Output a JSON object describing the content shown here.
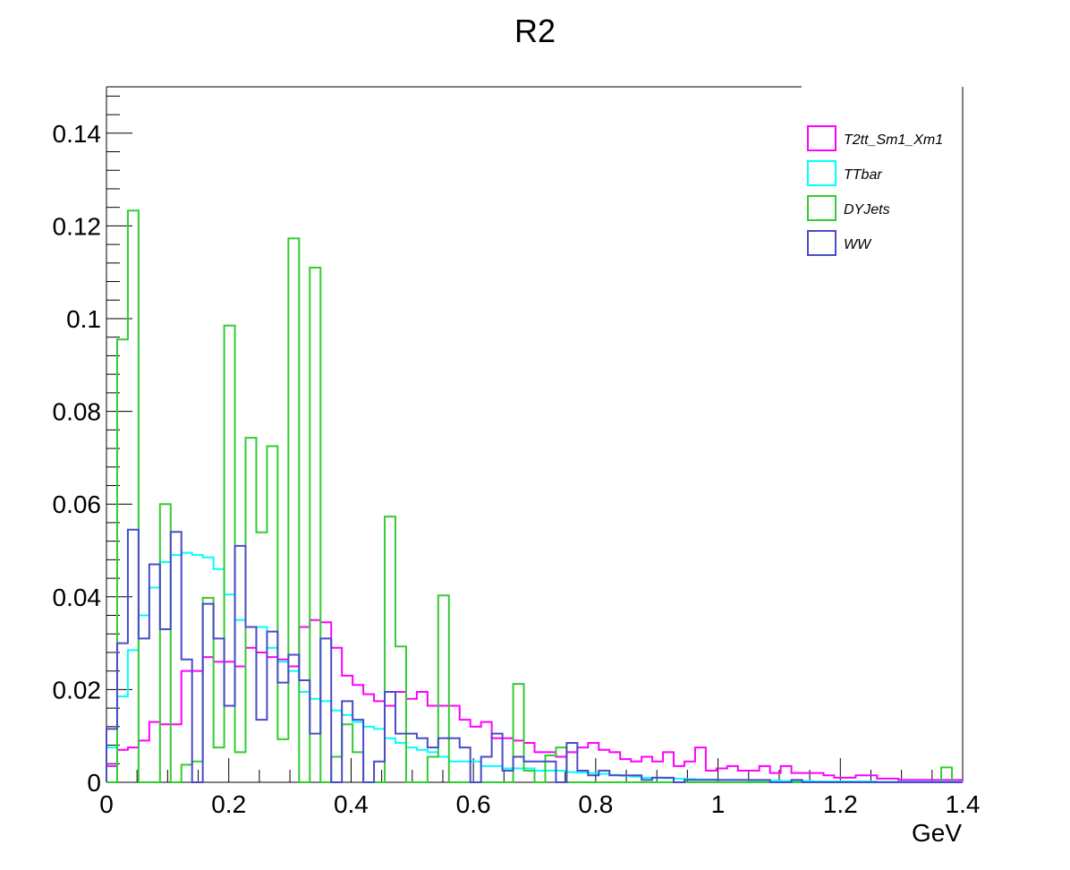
{
  "chart_data": {
    "type": "histogram",
    "title": "R2",
    "xlabel": "GeV",
    "ylabel": "",
    "xlim": [
      0,
      1.4
    ],
    "ylim": [
      0,
      0.15
    ],
    "bin_width": 0.0175,
    "x_ticks": [
      "0",
      "0.2",
      "0.4",
      "0.6",
      "0.8",
      "1",
      "1.2",
      "1.4"
    ],
    "x_tick_values": [
      0,
      0.2,
      0.4,
      0.6,
      0.8,
      1.0,
      1.2,
      1.4
    ],
    "y_ticks": [
      "0",
      "0.02",
      "0.04",
      "0.06",
      "0.08",
      "0.1",
      "0.12",
      "0.14"
    ],
    "y_tick_values": [
      0,
      0.02,
      0.04,
      0.06,
      0.08,
      0.1,
      0.12,
      0.14
    ],
    "legend_position": "top-right",
    "series": [
      {
        "name": "T2tt_Sm1_Xm1",
        "color": "#ff00ff",
        "values": [
          0.0035,
          0.007,
          0.0075,
          0.009,
          0.013,
          0.0125,
          0.0125,
          0.024,
          0.024,
          0.027,
          0.026,
          0.026,
          0.025,
          0.029,
          0.028,
          0.027,
          0.0265,
          0.025,
          0.0335,
          0.035,
          0.0345,
          0.029,
          0.023,
          0.021,
          0.019,
          0.0175,
          0.0165,
          0.0195,
          0.018,
          0.0195,
          0.0165,
          0.0165,
          0.0165,
          0.0135,
          0.012,
          0.013,
          0.0095,
          0.0095,
          0.009,
          0.0085,
          0.0065,
          0.0065,
          0.0055,
          0.0065,
          0.0075,
          0.0085,
          0.007,
          0.0065,
          0.005,
          0.0045,
          0.0055,
          0.0045,
          0.0065,
          0.0035,
          0.0045,
          0.0075,
          0.0025,
          0.003,
          0.0035,
          0.0025,
          0.0025,
          0.0035,
          0.002,
          0.0035,
          0.002,
          0.002,
          0.002,
          0.0015,
          0.001,
          0.001,
          0.0015,
          0.0015,
          0.0008,
          0.0008,
          0.0005,
          0.0005,
          0.0005,
          0.0005,
          0.0005,
          0.0005
        ]
      },
      {
        "name": "TTbar",
        "color": "#00ffff",
        "values": [
          0.0075,
          0.0185,
          0.0285,
          0.036,
          0.042,
          0.0475,
          0.049,
          0.0495,
          0.049,
          0.0485,
          0.046,
          0.0405,
          0.035,
          0.0335,
          0.0335,
          0.029,
          0.026,
          0.024,
          0.0195,
          0.018,
          0.0175,
          0.0155,
          0.0145,
          0.013,
          0.012,
          0.0115,
          0.0095,
          0.0085,
          0.0075,
          0.007,
          0.0065,
          0.0055,
          0.0045,
          0.0045,
          0.0045,
          0.0035,
          0.0035,
          0.003,
          0.003,
          0.003,
          0.0025,
          0.0025,
          0.0025,
          0.0022,
          0.0021,
          0.002,
          0.0018,
          0.0016,
          0.0014,
          0.0012,
          0.001,
          0.001,
          0.0009,
          0.0008,
          0.0007,
          0.0006,
          0.0006,
          0.0005,
          0.0005,
          0.0005,
          0.0004,
          0.0004,
          0.0004,
          0.0003,
          0.0003,
          0.0003,
          0.0002,
          0.0002,
          0.0002,
          0.0002,
          0.0002,
          0.0002,
          0.0001,
          0.0001,
          0.0001,
          0.0001,
          0.0001,
          0.0001,
          0.0001,
          0.0001
        ]
      },
      {
        "name": "DYJets",
        "color": "#33cc33",
        "values": [
          0.0,
          0.0955,
          0.1233,
          0.0,
          0.0,
          0.06,
          0.0,
          0.0038,
          0.0045,
          0.0398,
          0.0075,
          0.0985,
          0.0065,
          0.0743,
          0.0539,
          0.0725,
          0.0093,
          0.1173,
          0.0,
          0.111,
          0.0,
          0.0055,
          0.0125,
          0.0065,
          0.0,
          0.0,
          0.0573,
          0.0293,
          0.0,
          0.0,
          0.0055,
          0.0403,
          0.0,
          0.0,
          0.0,
          0.0,
          0.0,
          0.0,
          0.0212,
          0.0025,
          0.0,
          0.0058,
          0.0075,
          0.0,
          0.0,
          0.0,
          0.0,
          0.0,
          0.0,
          0.0,
          0.0,
          0.0,
          0.0,
          0.0,
          0.0,
          0.0,
          0.0,
          0.0,
          0.0,
          0.0,
          0.0,
          0.0,
          0.0,
          0.0,
          0.0,
          0.0,
          0.0,
          0.0,
          0.0,
          0.0,
          0.0,
          0.0,
          0.0,
          0.0,
          0.0,
          0.0,
          0.0,
          0.0,
          0.0032,
          0.0
        ]
      },
      {
        "name": "WW",
        "color": "#4b4bc8",
        "values": [
          0.0115,
          0.03,
          0.0545,
          0.031,
          0.047,
          0.033,
          0.054,
          0.0265,
          0.0,
          0.0385,
          0.031,
          0.0165,
          0.051,
          0.0335,
          0.0135,
          0.0325,
          0.0215,
          0.0275,
          0.022,
          0.0105,
          0.031,
          0.0,
          0.0175,
          0.0135,
          0.0,
          0.0045,
          0.0195,
          0.0105,
          0.0105,
          0.0095,
          0.0075,
          0.0095,
          0.0095,
          0.0075,
          0.0,
          0.0055,
          0.0105,
          0.0025,
          0.0055,
          0.0045,
          0.0045,
          0.0045,
          0.0,
          0.0085,
          0.0025,
          0.0015,
          0.0025,
          0.0015,
          0.0015,
          0.0015,
          0.0005,
          0.001,
          0.001,
          0.0,
          0.0005,
          0.0005,
          0.0005,
          0.0005,
          0.0005,
          0.0005,
          0.0005,
          0.0005,
          0.0,
          0.0,
          0.0005,
          0.0,
          0.0,
          0.0,
          0.0,
          0.0,
          0.0,
          0.0,
          0.0,
          0.0,
          0.0,
          0.0,
          0.0,
          0.0,
          0.0,
          0.0
        ]
      }
    ]
  }
}
